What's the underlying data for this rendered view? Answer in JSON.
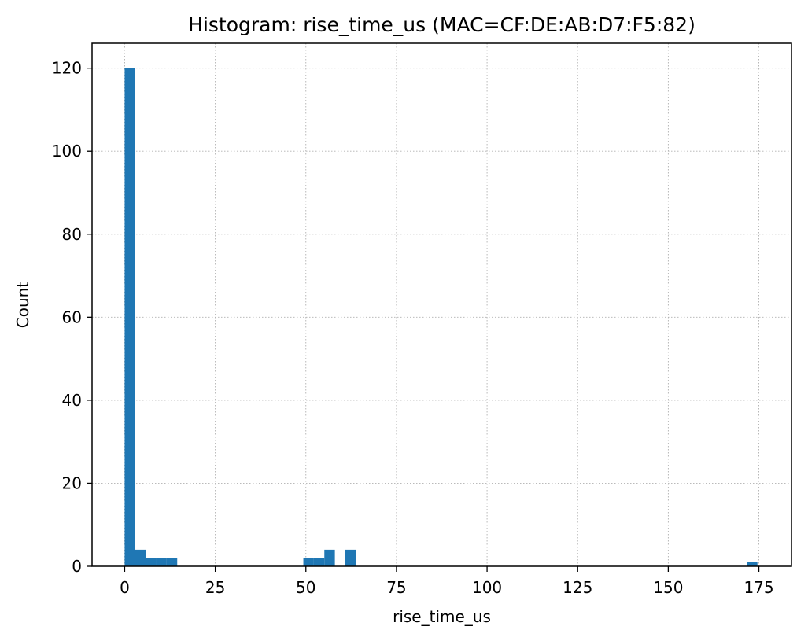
{
  "chart_data": {
    "type": "bar",
    "title": "Histogram: rise_time_us (MAC=CF:DE:AB:D7:F5:82)",
    "xlabel": "rise_time_us",
    "ylabel": "Count",
    "xlim": [
      -9,
      184
    ],
    "ylim": [
      0,
      126
    ],
    "xticks": [
      0,
      25,
      50,
      75,
      100,
      125,
      150,
      175
    ],
    "yticks": [
      0,
      20,
      40,
      60,
      80,
      100,
      120
    ],
    "grid": true,
    "bar_color": "#1f77b4",
    "bin_width": 2.9,
    "bins": [
      {
        "start": 0.0,
        "end": 2.9,
        "count": 120
      },
      {
        "start": 2.9,
        "end": 5.8,
        "count": 4
      },
      {
        "start": 5.8,
        "end": 8.7,
        "count": 2
      },
      {
        "start": 8.7,
        "end": 11.6,
        "count": 2
      },
      {
        "start": 11.6,
        "end": 14.5,
        "count": 2
      },
      {
        "start": 49.3,
        "end": 52.2,
        "count": 2
      },
      {
        "start": 52.2,
        "end": 55.1,
        "count": 2
      },
      {
        "start": 55.1,
        "end": 58.0,
        "count": 4
      },
      {
        "start": 60.9,
        "end": 63.8,
        "count": 4
      },
      {
        "start": 171.7,
        "end": 174.6,
        "count": 1
      }
    ]
  }
}
